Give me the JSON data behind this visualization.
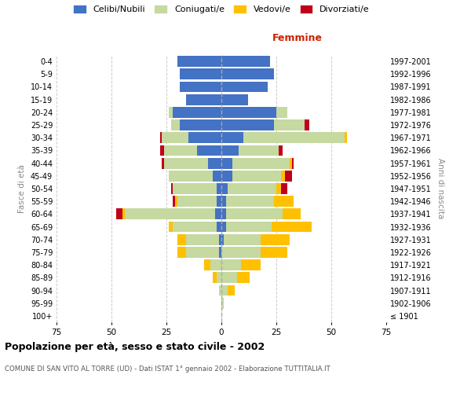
{
  "age_groups": [
    "100+",
    "95-99",
    "90-94",
    "85-89",
    "80-84",
    "75-79",
    "70-74",
    "65-69",
    "60-64",
    "55-59",
    "50-54",
    "45-49",
    "40-44",
    "35-39",
    "30-34",
    "25-29",
    "20-24",
    "15-19",
    "10-14",
    "5-9",
    "0-4"
  ],
  "birth_years": [
    "≤ 1901",
    "1902-1906",
    "1907-1911",
    "1912-1916",
    "1917-1921",
    "1922-1926",
    "1927-1931",
    "1932-1936",
    "1937-1941",
    "1942-1946",
    "1947-1951",
    "1952-1956",
    "1957-1961",
    "1962-1966",
    "1967-1971",
    "1972-1976",
    "1977-1981",
    "1982-1986",
    "1987-1991",
    "1992-1996",
    "1997-2001"
  ],
  "males": {
    "celibe": [
      0,
      0,
      0,
      0,
      0,
      1,
      1,
      2,
      3,
      2,
      2,
      4,
      6,
      11,
      15,
      19,
      22,
      16,
      19,
      19,
      20
    ],
    "coniugato": [
      0,
      0,
      1,
      2,
      5,
      15,
      15,
      20,
      41,
      18,
      20,
      20,
      20,
      15,
      12,
      4,
      2,
      0,
      0,
      0,
      0
    ],
    "vedovo": [
      0,
      0,
      0,
      2,
      3,
      4,
      4,
      2,
      1,
      1,
      0,
      0,
      0,
      0,
      0,
      0,
      0,
      0,
      0,
      0,
      0
    ],
    "divorziato": [
      0,
      0,
      0,
      0,
      0,
      0,
      0,
      0,
      3,
      1,
      1,
      0,
      1,
      2,
      1,
      0,
      0,
      0,
      0,
      0,
      0
    ]
  },
  "females": {
    "nubile": [
      0,
      0,
      0,
      0,
      0,
      0,
      1,
      2,
      2,
      2,
      3,
      5,
      5,
      8,
      10,
      24,
      25,
      12,
      21,
      24,
      22
    ],
    "coniugata": [
      0,
      1,
      3,
      7,
      9,
      18,
      17,
      21,
      26,
      22,
      22,
      22,
      26,
      18,
      46,
      14,
      5,
      0,
      0,
      0,
      0
    ],
    "vedova": [
      0,
      0,
      3,
      6,
      9,
      12,
      13,
      18,
      8,
      9,
      2,
      2,
      1,
      0,
      1,
      0,
      0,
      0,
      0,
      0,
      0
    ],
    "divorziata": [
      0,
      0,
      0,
      0,
      0,
      0,
      0,
      0,
      0,
      0,
      3,
      3,
      1,
      2,
      0,
      2,
      0,
      0,
      0,
      0,
      0
    ]
  },
  "colors": {
    "celibe": "#4472c4",
    "coniugato": "#c5d9a0",
    "vedovo": "#ffc000",
    "divorziato": "#c0001a"
  },
  "title": "Popolazione per età, sesso e stato civile - 2002",
  "subtitle": "COMUNE DI SAN VITO AL TORRE (UD) - Dati ISTAT 1° gennaio 2002 - Elaborazione TUTTITALIA.IT",
  "xlabel_right": "Femmine",
  "ylabel_left": "Fasce di età",
  "ylabel_right": "Anni di nascita",
  "xlim": 75,
  "background_color": "#ffffff",
  "grid_color": "#cccccc",
  "legend_labels": [
    "Celibi/Nubili",
    "Coniugati/e",
    "Vedovi/e",
    "Divorziati/e"
  ]
}
